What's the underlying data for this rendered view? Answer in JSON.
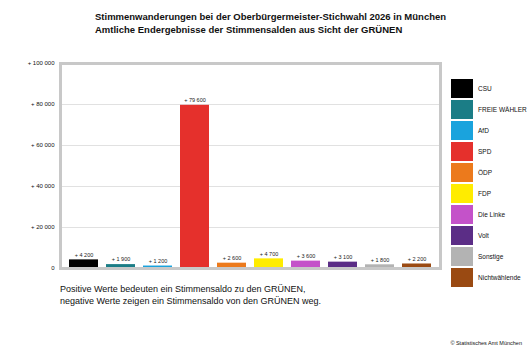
{
  "chart_data": {
    "type": "bar",
    "title": "Stimmenwanderungen bei der Oberbürgermeister-Stichwahl 2026 in München",
    "subtitle": "Amtliche Endergebnisse der Stimmensalden aus Sicht der GRÜNEN",
    "caption": "Positive Werte bedeuten ein Stimmensaldo zu den GRÜNEN,\nnegative Werte zeigen ein Stimmensaldo von den GRÜNEN weg.",
    "source": "© Statistisches Amt München",
    "categories": [
      "CSU",
      "FREIE WÄHLER",
      "AfD",
      "SPD",
      "ÖDP",
      "FDP",
      "Die Linke",
      "Volt",
      "Sonstige",
      "Nichtwählende"
    ],
    "values": [
      4200,
      1900,
      1200,
      79600,
      2600,
      4700,
      3600,
      3100,
      1800,
      2200
    ],
    "value_labels": [
      "+ 4 200",
      "+ 1 900",
      "+ 1 200",
      "+ 79 600",
      "+ 2 600",
      "+ 4 700",
      "+ 3 600",
      "+ 3 100",
      "+ 1 800",
      "+ 2 200"
    ],
    "colors": [
      "#000000",
      "#1b7d86",
      "#1aa3dd",
      "#e5302c",
      "#ec7a1c",
      "#ffec00",
      "#c452c9",
      "#5b2d86",
      "#b3b3b3",
      "#9a4a12"
    ],
    "ylim": [
      0,
      100000
    ],
    "yticks": [
      0,
      {
        "value": 20000,
        "label": "+ 20 000"
      },
      {
        "value": 40000,
        "label": "+ 40 000"
      },
      {
        "value": 60000,
        "label": "+ 60 000"
      },
      {
        "value": 80000,
        "label": "+ 80 000"
      },
      {
        "value": 100000,
        "label": "+ 100 000"
      }
    ],
    "grid": true,
    "data_labels": true,
    "legend": "right",
    "tick_labels": "y"
  }
}
